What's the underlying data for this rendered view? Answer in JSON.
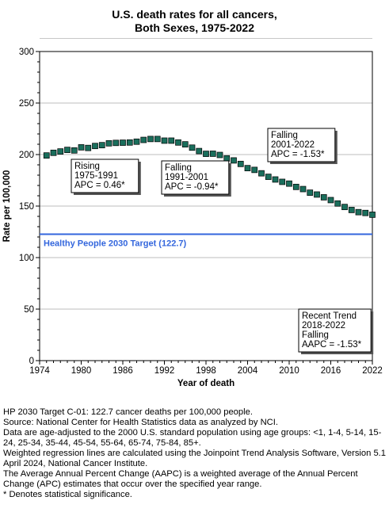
{
  "chart_data": {
    "type": "scatter",
    "title_lines": [
      "U.S. death rates for all cancers,",
      "Both Sexes,  1975-2022"
    ],
    "xlabel": "Year of death",
    "ylabel": "Rate per 100,000",
    "xlim": [
      1974,
      2022
    ],
    "ylim": [
      0,
      300
    ],
    "x_ticks": [
      1974,
      1980,
      1986,
      1992,
      1998,
      2004,
      2010,
      2016,
      2022
    ],
    "y_ticks": [
      0,
      50,
      100,
      150,
      200,
      250,
      300
    ],
    "grid": true,
    "marker_color": "#1a6e5c",
    "target_line": {
      "value": 122.7,
      "label": "Healthy People 2030 Target (122.7)",
      "color": "#3366dd"
    },
    "x": [
      1975,
      1976,
      1977,
      1978,
      1979,
      1980,
      1981,
      1982,
      1983,
      1984,
      1985,
      1986,
      1987,
      1988,
      1989,
      1990,
      1991,
      1992,
      1993,
      1994,
      1995,
      1996,
      1997,
      1998,
      1999,
      2000,
      2001,
      2002,
      2003,
      2004,
      2005,
      2006,
      2007,
      2008,
      2009,
      2010,
      2011,
      2012,
      2013,
      2014,
      2015,
      2016,
      2017,
      2018,
      2019,
      2020,
      2021,
      2022
    ],
    "values": [
      199.1,
      201.7,
      203.0,
      204.5,
      204.0,
      207.0,
      206.4,
      208.3,
      209.1,
      210.9,
      211.3,
      211.5,
      211.7,
      212.5,
      214.2,
      215.1,
      215.1,
      213.5,
      213.5,
      211.7,
      209.9,
      206.7,
      203.4,
      200.7,
      200.8,
      199.6,
      196.3,
      194.3,
      190.9,
      186.8,
      185.1,
      181.8,
      178.4,
      175.8,
      173.5,
      171.8,
      168.6,
      166.5,
      163.0,
      161.2,
      158.5,
      155.8,
      152.5,
      149.1,
      146.2,
      144.1,
      143.3,
      141.6
    ],
    "annotations": [
      {
        "lines": [
          "Rising",
          "1975-1991",
          "APC =  0.46*"
        ]
      },
      {
        "lines": [
          "Falling",
          "1991-2001",
          "APC = -0.94*"
        ]
      },
      {
        "lines": [
          "Falling",
          "2001-2022",
          "APC = -1.53*"
        ]
      },
      {
        "lines": [
          "Recent Trend",
          "2018-2022",
          "Falling",
          "AAPC = -1.53*"
        ]
      }
    ]
  },
  "footnotes": [
    "HP 2030 Target C-01: 122.7 cancer deaths per 100,000 people.",
    "Source: National Center for Health Statistics data as analyzed by NCI.",
    "Data are age-adjusted to the 2000 U.S. standard population using age groups: <1, 1-4, 5-14, 15-24, 25-34, 35-44, 45-54, 55-64, 65-74, 75-84, 85+.",
    "Weighted regression lines are calculated using the Joinpoint Trend Analysis Software, Version 5.1 April 2024, National Cancer Institute.",
    "The Average Annual Percent Change (AAPC) is a weighted average of the Annual Percent Change (APC) estimates that occur over the specified year range.",
    "* Denotes statistical significance."
  ]
}
